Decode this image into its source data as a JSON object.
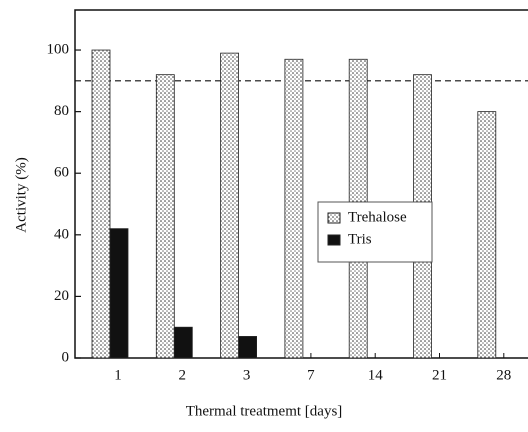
{
  "chart_data": {
    "type": "bar",
    "categories": [
      "1",
      "2",
      "3",
      "7",
      "14",
      "21",
      "28"
    ],
    "series": [
      {
        "name": "Trehalose",
        "color": "#d8d8d8",
        "values": [
          100,
          92,
          99,
          97,
          97,
          92,
          80
        ]
      },
      {
        "name": "Tris",
        "color": "#111111",
        "values": [
          42,
          10,
          7,
          0,
          0,
          0,
          0
        ]
      }
    ],
    "x_label": "Thermal treatmemt [days]",
    "y_label": "Activity (%)",
    "ylim": [
      0,
      113
    ],
    "yticks": [
      0,
      20,
      40,
      60,
      80,
      100
    ],
    "reference_line": 90
  }
}
